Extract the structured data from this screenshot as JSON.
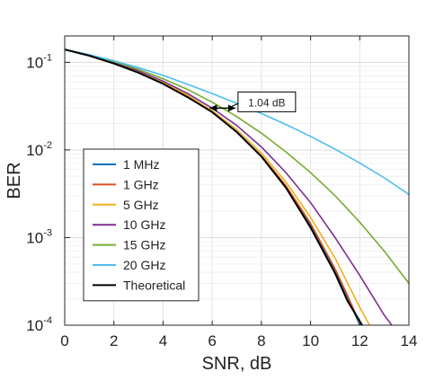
{
  "chart_data": {
    "type": "line",
    "xlabel": "SNR, dB",
    "ylabel": "BER",
    "xlim": [
      0,
      14
    ],
    "ylim": [
      0.0001,
      0.2
    ],
    "y_scale": "log",
    "grid": true,
    "legend_placement": "bottom-left",
    "x_ticks": [
      "0",
      "2",
      "4",
      "6",
      "8",
      "10",
      "12",
      "14"
    ],
    "y_ticks": [
      {
        "base": "10",
        "exp": "-1",
        "value": 0.1
      },
      {
        "base": "10",
        "exp": "-2",
        "value": 0.01
      },
      {
        "base": "10",
        "exp": "-3",
        "value": 0.001
      },
      {
        "base": "10",
        "exp": "-4",
        "value": 0.0001
      }
    ],
    "series": [
      {
        "name": "1 MHz",
        "color": "#0072BD",
        "x": [
          0,
          1,
          2,
          3,
          4,
          5,
          6,
          7,
          8,
          9,
          10,
          11,
          11.5,
          12
        ],
        "y": [
          0.14,
          0.119,
          0.098,
          0.077,
          0.058,
          0.041,
          0.027,
          0.016,
          0.0085,
          0.0038,
          0.0014,
          0.00042,
          0.00021,
          0.0001
        ]
      },
      {
        "name": "1 GHz",
        "color": "#D95319",
        "x": [
          0,
          1,
          2,
          3,
          4,
          5,
          6,
          7,
          8,
          9,
          10,
          11,
          11.5,
          12
        ],
        "y": [
          0.14,
          0.119,
          0.098,
          0.077,
          0.058,
          0.041,
          0.027,
          0.016,
          0.0086,
          0.0039,
          0.00145,
          0.00044,
          0.00022,
          0.000105
        ]
      },
      {
        "name": "5 GHz",
        "color": "#EDB120",
        "x": [
          0,
          1,
          2,
          3,
          4,
          5,
          6,
          7,
          8,
          9,
          10,
          11,
          12,
          12.4
        ],
        "y": [
          0.14,
          0.12,
          0.099,
          0.078,
          0.059,
          0.042,
          0.028,
          0.017,
          0.0092,
          0.0043,
          0.0017,
          0.00058,
          0.00016,
          0.0001
        ]
      },
      {
        "name": "10 GHz",
        "color": "#7E2F8E",
        "x": [
          0,
          1,
          2,
          3,
          4,
          5,
          6,
          7,
          8,
          9,
          10,
          11,
          12,
          13,
          13.3
        ],
        "y": [
          0.14,
          0.12,
          0.1,
          0.08,
          0.061,
          0.044,
          0.03,
          0.019,
          0.0108,
          0.0055,
          0.0025,
          0.001,
          0.00037,
          0.00013,
          0.0001
        ]
      },
      {
        "name": "15 GHz",
        "color": "#77AC30",
        "x": [
          0,
          1,
          2,
          3,
          4,
          5,
          6,
          7,
          8,
          9,
          10,
          11,
          12,
          13,
          14
        ],
        "y": [
          0.14,
          0.121,
          0.102,
          0.083,
          0.065,
          0.049,
          0.035,
          0.024,
          0.0155,
          0.0095,
          0.0055,
          0.003,
          0.0015,
          0.0007,
          0.0003
        ]
      },
      {
        "name": "20 GHz",
        "color": "#4DBEEE",
        "x": [
          0,
          1,
          2,
          3,
          4,
          5,
          6,
          7,
          8,
          9,
          10,
          11,
          12,
          13,
          14
        ],
        "y": [
          0.14,
          0.122,
          0.104,
          0.087,
          0.071,
          0.056,
          0.044,
          0.034,
          0.026,
          0.0195,
          0.0143,
          0.0102,
          0.0071,
          0.0048,
          0.0031
        ]
      },
      {
        "name": "Theoretical",
        "color": "#000000",
        "x": [
          0,
          1,
          2,
          3,
          4,
          5,
          6,
          7,
          8,
          9,
          10,
          11,
          11.5,
          12.1
        ],
        "y": [
          0.14,
          0.119,
          0.097,
          0.076,
          0.057,
          0.04,
          0.027,
          0.016,
          0.0084,
          0.0037,
          0.0013,
          0.00039,
          0.00019,
          0.0001
        ]
      }
    ],
    "annotation": {
      "text": "1.04 dB",
      "arrow_from": {
        "x": 5.9,
        "y": 0.03
      },
      "arrow_to": {
        "x": 6.94,
        "y": 0.03
      }
    }
  }
}
